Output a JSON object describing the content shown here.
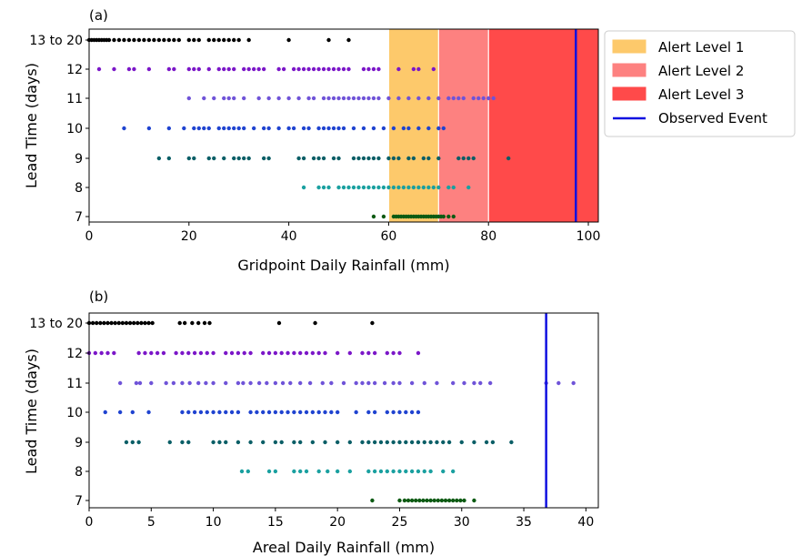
{
  "chart_data": [
    {
      "panel": "(a)",
      "type": "scatter",
      "xlabel": "Gridpoint Daily Rainfall (mm)",
      "ylabel": "Lead Time (days)",
      "xlim": [
        0,
        102
      ],
      "x_ticks": [
        "0",
        "20",
        "40",
        "60",
        "80",
        "100"
      ],
      "categories": [
        "7",
        "8",
        "9",
        "10",
        "11",
        "12",
        "13 to 20"
      ],
      "alert_bands": [
        {
          "label": "Alert Level 1",
          "from": 60,
          "to": 70,
          "color": "#fdc96b"
        },
        {
          "label": "Alert Level 2",
          "from": 70,
          "to": 80,
          "color": "#fd8180"
        },
        {
          "label": "Alert Level 3",
          "from": 80,
          "to": 102,
          "color": "#ff4a4a"
        }
      ],
      "observed_event": {
        "label": "Observed Event",
        "x": 97.5,
        "color": "#1010e0"
      },
      "legend": {
        "position": "outside-right",
        "entries": [
          "Alert Level 1",
          "Alert Level 2",
          "Alert Level 3",
          "Observed Event"
        ]
      },
      "series": [
        {
          "category": "13 to 20",
          "color": "#000000",
          "values": [
            0,
            0.5,
            1,
            1.5,
            2,
            2.5,
            3,
            3.5,
            4,
            5,
            6,
            7,
            8,
            9,
            10,
            11,
            12,
            13,
            14,
            15,
            16,
            17,
            18,
            20,
            21,
            22,
            24,
            25,
            26,
            27,
            28,
            29,
            30,
            32,
            40,
            48,
            52
          ]
        },
        {
          "category": "12",
          "color": "#7b16c8",
          "values": [
            2,
            5,
            8,
            9,
            12,
            16,
            17,
            20,
            21,
            22,
            24,
            26,
            27,
            28,
            29,
            31,
            32,
            33,
            34,
            35,
            38,
            39,
            41,
            42,
            43,
            44,
            45,
            46,
            47,
            48,
            49,
            50,
            51,
            52,
            55,
            56,
            57,
            58,
            62,
            65,
            66,
            69
          ]
        },
        {
          "category": "11",
          "color": "#6f53d8",
          "values": [
            20,
            23,
            25,
            27,
            28,
            29,
            31,
            34,
            36,
            38,
            40,
            42,
            44,
            45,
            47,
            48,
            49,
            50,
            51,
            52,
            53,
            54,
            55,
            56,
            57,
            58,
            60,
            62,
            64,
            66,
            68,
            70,
            72,
            73,
            74,
            75,
            77,
            78,
            79,
            80,
            81
          ]
        },
        {
          "category": "10",
          "color": "#1f43d0",
          "values": [
            7,
            12,
            16,
            19,
            21,
            22,
            23,
            24,
            26,
            27,
            28,
            29,
            30,
            31,
            33,
            35,
            36,
            38,
            40,
            41,
            43,
            44,
            46,
            47,
            48,
            49,
            50,
            51,
            53,
            55,
            57,
            59,
            61,
            63,
            64,
            66,
            68,
            70,
            71
          ]
        },
        {
          "category": "9",
          "color": "#0a5e66",
          "values": [
            14,
            16,
            20,
            21,
            24,
            25,
            27,
            29,
            30,
            31,
            32,
            35,
            36,
            42,
            43,
            45,
            46,
            47,
            49,
            50,
            53,
            54,
            55,
            56,
            57,
            58,
            60,
            61,
            62,
            64,
            65,
            67,
            68,
            70,
            74,
            75,
            76,
            77,
            84
          ]
        },
        {
          "category": "8",
          "color": "#1aa0a0",
          "values": [
            43,
            46,
            47,
            48,
            50,
            51,
            52,
            53,
            54,
            55,
            56,
            57,
            58,
            59,
            60,
            61,
            62,
            63,
            64,
            65,
            66,
            67,
            68,
            69,
            70,
            72,
            73,
            76
          ]
        },
        {
          "category": "7",
          "color": "#0b5a12",
          "values": [
            57,
            59,
            61,
            61.5,
            62,
            62.5,
            63,
            63.5,
            64,
            64.5,
            65,
            65.5,
            66,
            66.5,
            67,
            67.5,
            68,
            68.5,
            69,
            69.5,
            70,
            70.5,
            71,
            72,
            73
          ]
        }
      ]
    },
    {
      "panel": "(b)",
      "type": "scatter",
      "xlabel": "Areal Daily Rainfall (mm)",
      "ylabel": "Lead Time (days)",
      "xlim": [
        0,
        41
      ],
      "x_ticks": [
        "0",
        "5",
        "10",
        "15",
        "20",
        "25",
        "30",
        "35",
        "40"
      ],
      "categories": [
        "7",
        "8",
        "9",
        "10",
        "11",
        "12",
        "13 to 20"
      ],
      "observed_event": {
        "x": 36.8,
        "color": "#1010e0"
      },
      "series": [
        {
          "category": "13 to 20",
          "color": "#000000",
          "values": [
            0,
            0.3,
            0.6,
            0.9,
            1.2,
            1.5,
            1.8,
            2.1,
            2.4,
            2.7,
            3,
            3.3,
            3.6,
            3.9,
            4.2,
            4.5,
            4.8,
            5.1,
            7.3,
            7.7,
            8.3,
            8.8,
            9.3,
            9.7,
            15.3,
            18.2,
            22.8
          ]
        },
        {
          "category": "12",
          "color": "#7b16c8",
          "values": [
            0,
            0.5,
            1,
            1.5,
            2,
            4,
            4.5,
            5,
            5.5,
            6,
            7,
            7.5,
            8,
            8.5,
            9,
            9.5,
            10,
            11,
            11.5,
            12,
            12.5,
            13,
            14,
            14.5,
            15,
            15.5,
            16,
            16.5,
            17,
            17.5,
            18,
            18.5,
            19,
            20,
            21,
            22,
            22.5,
            23,
            24,
            24.5,
            25,
            26.5
          ]
        },
        {
          "category": "11",
          "color": "#6f53d8",
          "values": [
            2.5,
            3.8,
            4.1,
            5,
            6.2,
            6.8,
            7.5,
            8.1,
            8.8,
            9.4,
            10,
            11,
            12,
            12.4,
            13,
            13.7,
            14.3,
            15,
            15.6,
            16.2,
            17,
            17.8,
            18.8,
            19.5,
            20.5,
            21.5,
            22,
            22.5,
            23,
            23.8,
            24.5,
            25,
            26,
            27,
            28,
            29.3,
            30.2,
            31,
            31.5,
            32.3,
            36.8,
            37.8,
            39
          ]
        },
        {
          "category": "10",
          "color": "#1f43d0",
          "values": [
            1.3,
            2.5,
            3.5,
            4.8,
            7.5,
            8,
            8.5,
            9,
            9.5,
            10,
            10.5,
            11,
            11.5,
            12,
            13,
            13.5,
            14,
            14.5,
            15,
            15.5,
            16,
            16.5,
            17,
            17.5,
            18,
            18.5,
            19,
            19.5,
            20,
            21.5,
            22.5,
            23,
            24,
            24.5,
            25,
            25.5,
            26,
            26.5
          ]
        },
        {
          "category": "9",
          "color": "#0a5e66",
          "values": [
            3,
            3.5,
            4,
            6.5,
            7.5,
            8,
            10,
            10.5,
            11,
            12,
            13,
            14,
            15,
            15.5,
            16.5,
            17,
            18,
            19,
            20,
            21,
            22,
            22.5,
            23,
            23.5,
            24,
            24.5,
            25,
            25.5,
            26,
            26.5,
            27,
            27.5,
            28,
            28.5,
            29,
            30,
            31,
            32,
            32.5,
            34
          ]
        },
        {
          "category": "8",
          "color": "#1aa0a0",
          "values": [
            12.3,
            12.8,
            14.5,
            15,
            16.5,
            17,
            17.5,
            18.5,
            19.2,
            20,
            21,
            22.5,
            23,
            23.5,
            24,
            24.5,
            25,
            25.5,
            26,
            26.5,
            27,
            27.5,
            28.5,
            29.3
          ]
        },
        {
          "category": "7",
          "color": "#0b5a12",
          "values": [
            22.8,
            25,
            25.4,
            25.7,
            26,
            26.3,
            26.6,
            26.9,
            27.2,
            27.5,
            27.8,
            28.1,
            28.4,
            28.7,
            29,
            29.3,
            29.6,
            29.9,
            30.2,
            31
          ]
        }
      ]
    }
  ]
}
